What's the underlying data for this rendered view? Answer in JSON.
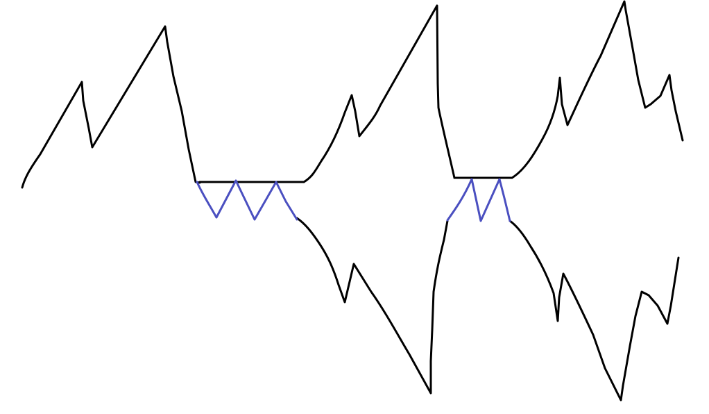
{
  "canvas": {
    "background": "#ffffff"
  },
  "colors": {
    "black_line": "#000000",
    "blue_line": "#4a4fc0"
  }
}
